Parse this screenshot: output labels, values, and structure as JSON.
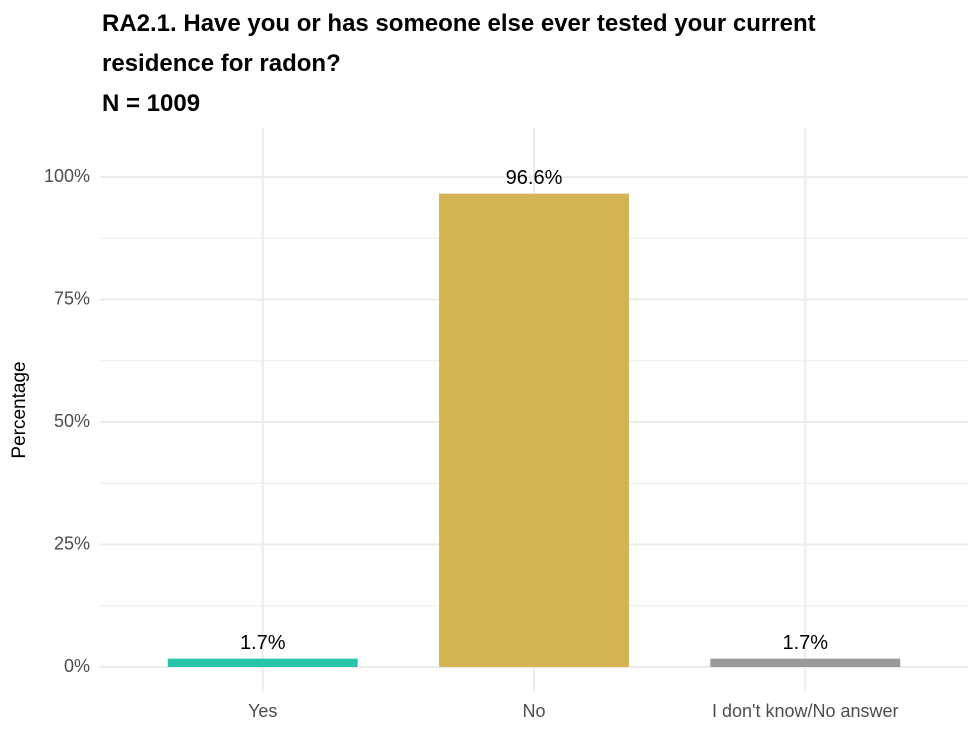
{
  "chart_data": {
    "type": "bar",
    "title": "RA2.1. Have you or has someone else ever tested your current residence for radon?",
    "subtitle": "N = 1009",
    "y_label": "Percentage",
    "categories": [
      "Yes",
      "No",
      "I don't know/No answer"
    ],
    "values": [
      1.7,
      96.6,
      1.7
    ],
    "value_labels": [
      "1.7%",
      "96.6%",
      "1.7%"
    ],
    "colors": [
      "#26c6aa",
      "#d4b352",
      "#999999"
    ],
    "ylim": [
      -5,
      110
    ],
    "yticks": [
      {
        "value": 0,
        "label": "0%"
      },
      {
        "value": 25,
        "label": "25%"
      },
      {
        "value": 50,
        "label": "50%"
      },
      {
        "value": 75,
        "label": "75%"
      },
      {
        "value": 100,
        "label": "100%"
      }
    ],
    "y_minor_ticks": [
      12.5,
      37.5,
      62.5,
      87.5
    ],
    "grid": true
  }
}
